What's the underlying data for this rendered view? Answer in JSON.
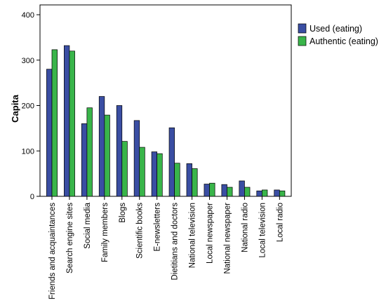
{
  "chart_data": {
    "type": "bar",
    "ylabel": "Capita",
    "ylim": [
      0,
      400
    ],
    "yticks": [
      "0",
      "100",
      "200",
      "300",
      "400"
    ],
    "grid": false,
    "legend_position": "top-right",
    "categories": [
      "Friends and acquaintances",
      "Search engine sites",
      "Social media",
      "Family members",
      "Blogs",
      "Scientific books",
      "E-newsletters",
      "Dietitians and doctors",
      "National television",
      "Local newspaper",
      "National newspaper",
      "National radio",
      "Local television",
      "Local radio"
    ],
    "series": [
      {
        "name": "Used (eating)",
        "color": "#3a4ea3",
        "values": [
          280,
          332,
          160,
          220,
          200,
          167,
          98,
          151,
          72,
          27,
          26,
          34,
          12,
          14
        ]
      },
      {
        "name": "Authentic (eating)",
        "color": "#39b54a",
        "values": [
          323,
          320,
          195,
          179,
          121,
          108,
          94,
          73,
          61,
          29,
          20,
          20,
          14,
          12
        ]
      }
    ]
  }
}
